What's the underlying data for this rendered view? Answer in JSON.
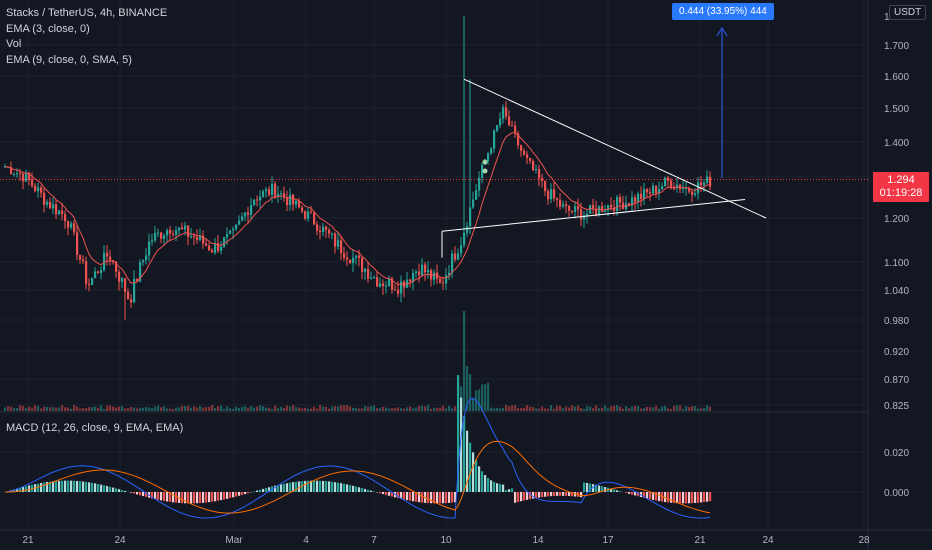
{
  "legend": {
    "symbol": "Stacks / TetherUS, 4h, BINANCE",
    "ema1": "EMA (3, close, 0)",
    "vol": "Vol",
    "ema2": "EMA (9, close, 0, SMA, 5)"
  },
  "macd_legend": "MACD (12, 26, close, 9, EMA, EMA)",
  "currency": "USDT",
  "price_tag": {
    "price": "1.294",
    "countdown": "01:19:28"
  },
  "measure_label": "0.444 (33.95%) 444",
  "price_axis": [
    "1",
    "1.700",
    "1.600",
    "1.500",
    "1.400",
    "1.300",
    "1.200",
    "1.100",
    "1.040",
    "0.980",
    "0.920",
    "0.870",
    "0.825"
  ],
  "macd_axis": [
    "0.020",
    "0.000"
  ],
  "time_axis": [
    "21",
    "24",
    "Mar",
    "4",
    "7",
    "10",
    "14",
    "17",
    "21",
    "24",
    "28"
  ],
  "colors": {
    "up": "#26a69a",
    "down": "#ef5350",
    "bg": "#131722",
    "ema": "#ef5350",
    "macd": "#2962ff",
    "signal": "#ff6d00"
  },
  "chart_data": {
    "type": "candlestick",
    "title": "Stacks / TetherUS, 4h, BINANCE",
    "ylim": [
      0.825,
      1.75
    ],
    "current_price": 1.294,
    "triangle": {
      "upper": [
        1.59,
        1.25
      ],
      "lower": [
        1.17,
        1.25
      ]
    },
    "close_path": [
      1.33,
      1.3,
      1.24,
      1.2,
      1.05,
      1.12,
      1.02,
      1.15,
      1.18,
      1.16,
      1.13,
      1.16,
      1.25,
      1.27,
      1.23,
      1.19,
      1.14,
      1.1,
      1.06,
      1.05,
      1.09,
      1.05,
      1.15,
      1.32,
      1.49,
      1.36,
      1.27,
      1.22,
      1.21,
      1.23,
      1.24,
      1.26,
      1.29,
      1.27,
      1.29
    ],
    "macd_range": [
      -0.013,
      0.031
    ]
  }
}
